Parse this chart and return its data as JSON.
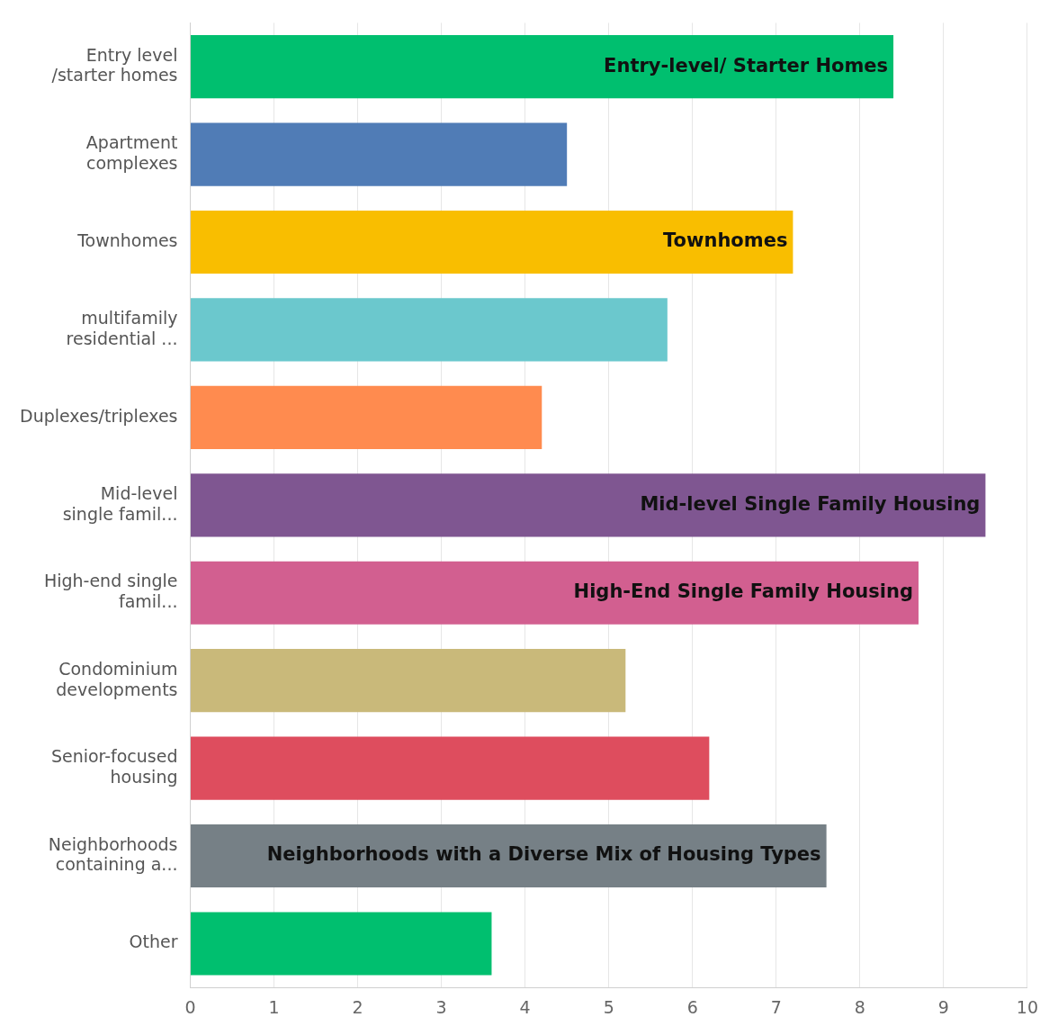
{
  "chart_data": {
    "type": "bar",
    "orientation": "horizontal",
    "categories": [
      "Entry level /starter homes",
      "Apartment complexes",
      "Townhomes",
      "multifamily residential ...",
      "Duplexes/triplexes",
      "Mid-level single famil...",
      "High-end single famil...",
      "Condominium developments",
      "Senior-focused housing",
      "Neighborhoods containing a...",
      "Other"
    ],
    "values": [
      8.4,
      4.5,
      7.2,
      5.7,
      4.2,
      9.5,
      8.7,
      5.2,
      6.2,
      7.6,
      3.6
    ],
    "colors": [
      "#00bf6f",
      "#507cb6",
      "#f9be00",
      "#6bc8cd",
      "#ff8b4f",
      "#7f5691",
      "#d25f90",
      "#c9b97a",
      "#de4d5e",
      "#768086",
      "#00bf6f"
    ],
    "xlim": [
      0,
      10
    ],
    "xticks": [
      0,
      1,
      2,
      3,
      4,
      5,
      6,
      7,
      8,
      9,
      10
    ],
    "grid": "x",
    "annotations": [
      {
        "text": "Entry-level/ Starter Homes",
        "x": 8.4,
        "y": "Entry level /starter homes"
      },
      {
        "text": "Townhomes",
        "x": 7.2,
        "y": "Townhomes"
      },
      {
        "text": "Mid-level Single Family Housing",
        "x": 9.5,
        "y": "Mid-level single famil..."
      },
      {
        "text": "High-End Single Family Housing",
        "x": 8.7,
        "y": "High-end single famil..."
      },
      {
        "text": "Neighborhoods with a Diverse Mix of Housing Types",
        "x": 7.6,
        "y": "Neighborhoods containing a..."
      }
    ]
  }
}
